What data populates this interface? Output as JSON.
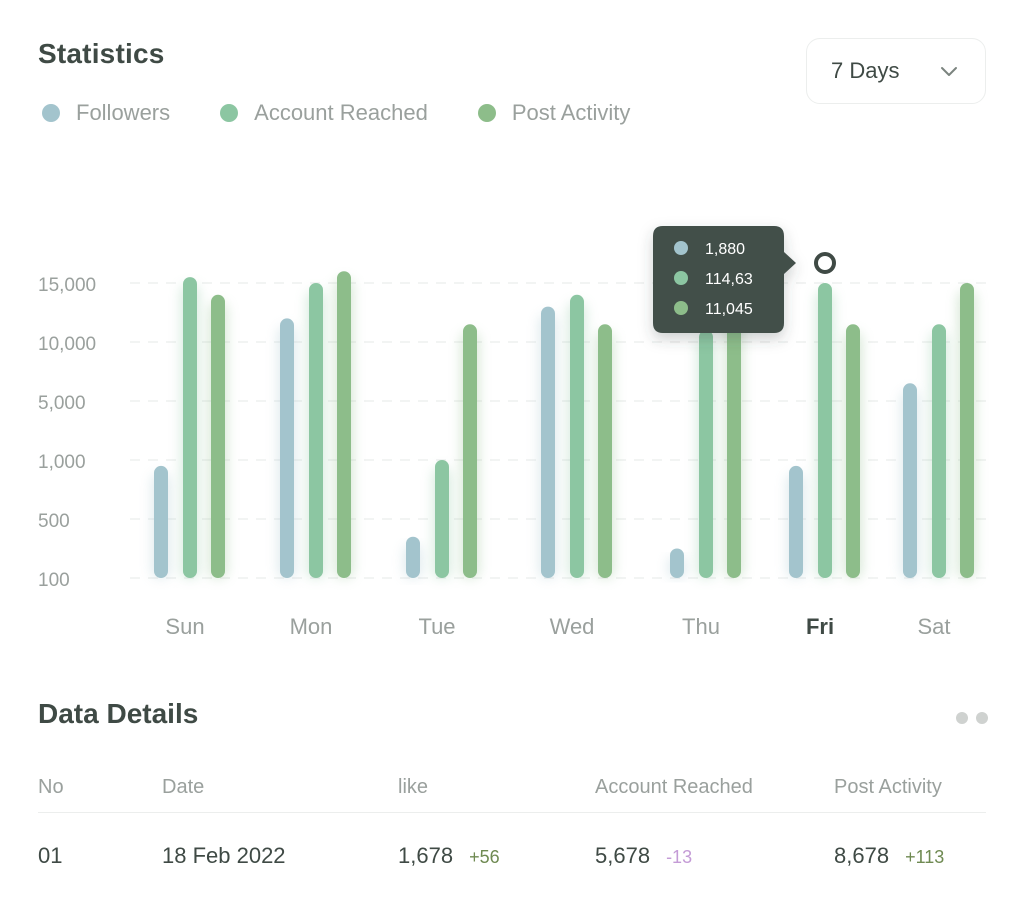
{
  "header": {
    "title": "Statistics"
  },
  "range_select": {
    "value": "7 Days"
  },
  "legend": [
    {
      "label": "Followers",
      "color": "#a3c4cd"
    },
    {
      "label": "Account Reached",
      "color": "#8cc6a2"
    },
    {
      "label": "Post Activity",
      "color": "#8dbd8a"
    }
  ],
  "tooltip": {
    "values": [
      "1,880",
      "114,63",
      "11,045"
    ]
  },
  "chart_data": {
    "type": "bar",
    "categories": [
      "Sun",
      "Mon",
      "Tue",
      "Wed",
      "Thu",
      "Fri",
      "Sat"
    ],
    "active_category": "Fri",
    "y_tick_labels": [
      "100",
      "500",
      "1,000",
      "5,000",
      "10,000",
      "15,000"
    ],
    "grid": true,
    "legend_position": "top-left",
    "series": [
      {
        "name": "Followers",
        "color": "#a3c4cd",
        "values": [
          1.9,
          4.4,
          0.7,
          4.6,
          0.5,
          1.9,
          3.3
        ]
      },
      {
        "name": "Account Reached",
        "color": "#8cc6a2",
        "values": [
          5.1,
          5.0,
          2.0,
          4.8,
          4.2,
          5.0,
          4.3
        ]
      },
      {
        "name": "Post Activity",
        "color": "#8dbd8a",
        "values": [
          4.8,
          5.2,
          4.3,
          4.3,
          5.1,
          4.3,
          5.0
        ]
      }
    ]
  },
  "details": {
    "title": "Data Details",
    "columns": [
      "No",
      "Date",
      "like",
      "Account Reached",
      "Post Activity"
    ],
    "rows": [
      {
        "no": "01",
        "date": "18 Feb 2022",
        "like": "1,678",
        "like_delta": "+56",
        "reached": "5,678",
        "reached_delta": "-13",
        "activity": "8,678",
        "activity_delta": "+113"
      }
    ]
  }
}
